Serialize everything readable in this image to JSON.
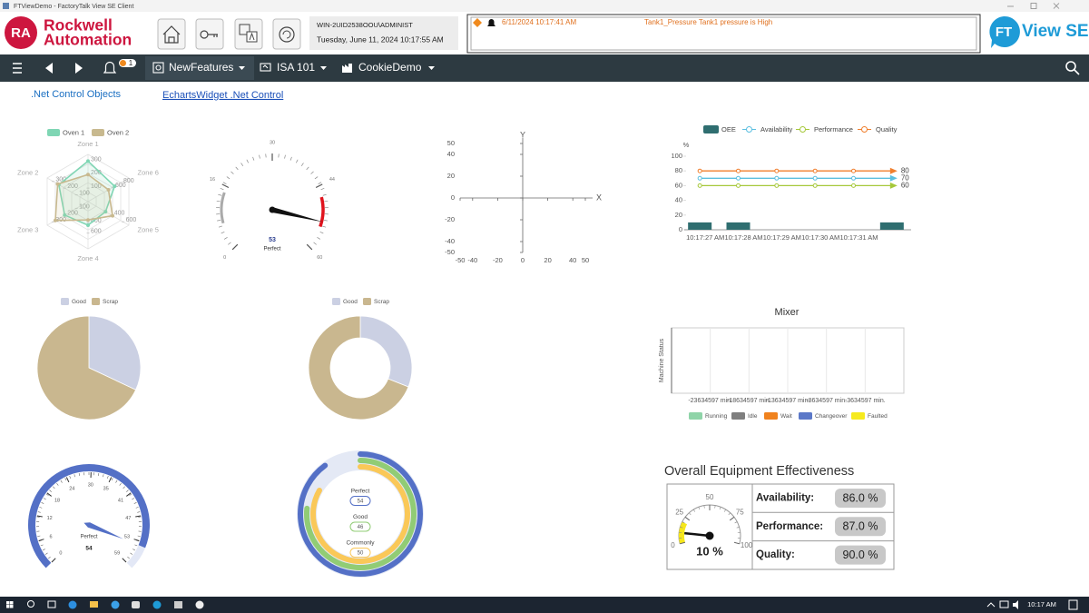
{
  "window": {
    "title": "FTViewDemo - FactoryTalk View SE Client"
  },
  "header": {
    "badge": "RA",
    "logo": [
      "Rockwell",
      "Automation"
    ],
    "computer": "WIN-2UID2538OOU\\ADMINIST",
    "datetime": "Tuesday, June 11, 2024 10:17:55 AM",
    "alarm": {
      "time": "6/11/2024 10:17:41 AM",
      "message": "Tank1_Pressure Tank1 pressure is High"
    },
    "product": {
      "mark": "FT",
      "name": "View SE"
    }
  },
  "nav": {
    "alarm_count": "1",
    "tabs": [
      "NewFeatures",
      "ISA 101",
      "CookieDemo"
    ]
  },
  "links": [
    ".Net Control Objects",
    "EchartsWidget .Net Control"
  ],
  "radar": {
    "type": "radar",
    "indicators": [
      {
        "name": "Zone 1",
        "max": 350,
        "ticks": [
          100,
          200,
          300
        ]
      },
      {
        "name": "Zone 2",
        "max": 350,
        "ticks": [
          100,
          200,
          300
        ]
      },
      {
        "name": "Zone 3",
        "max": 350,
        "ticks": [
          100,
          200,
          300
        ]
      },
      {
        "name": "Zone 4",
        "max": 900,
        "ticks": [
          400,
          600
        ]
      },
      {
        "name": "Zone 5",
        "max": 700,
        "ticks": [
          400,
          600
        ]
      },
      {
        "name": "Zone 6",
        "max": 1000,
        "ticks": [
          600,
          800
        ]
      }
    ],
    "series": [
      {
        "name": "Oven 1",
        "color": "#7fd6b4",
        "values": [
          300,
          250,
          200,
          450,
          300,
          650
        ]
      },
      {
        "name": "Oven 2",
        "color": "#c8b98f",
        "values": [
          200,
          260,
          280,
          350,
          420,
          500
        ]
      }
    ]
  },
  "gauge_top": {
    "type": "gauge",
    "min": 0,
    "max": 60,
    "ticks": [
      0,
      16,
      30,
      44,
      60
    ],
    "value": 53,
    "label": "Perfect"
  },
  "axes": {
    "type": "scatter",
    "x_name": "X",
    "y_name": "Y",
    "xlim": [
      -50,
      50
    ],
    "ylim": [
      -50,
      50
    ],
    "xticks": [
      -50,
      -40,
      -20,
      0,
      20,
      40,
      50
    ],
    "yticks": [
      50,
      40,
      20,
      0,
      -20,
      -40,
      -50
    ]
  },
  "oee_trend": {
    "type": "line",
    "y_label": "%",
    "categories": [
      "10:17:27 AM",
      "10:17:28 AM",
      "10:17:29 AM",
      "10:17:30 AM",
      "10:17:31 AM",
      null
    ],
    "ylim": [
      0,
      100
    ],
    "yticks": [
      0,
      20,
      40,
      60,
      80,
      100
    ],
    "series": [
      {
        "name": "OEE",
        "kind": "bar",
        "color": "#2f6e70",
        "values": [
          10,
          10,
          null,
          null,
          null,
          10
        ]
      },
      {
        "name": "Availability",
        "kind": "line",
        "color": "#5bbfe0",
        "values": [
          70,
          70,
          70,
          70,
          70,
          70
        ]
      },
      {
        "name": "Performance",
        "kind": "line",
        "color": "#a6c83a",
        "values": [
          60,
          60,
          60,
          60,
          60,
          60
        ]
      },
      {
        "name": "Quality",
        "kind": "line",
        "color": "#f07f2e",
        "values": [
          80,
          80,
          80,
          80,
          80,
          80
        ]
      }
    ]
  },
  "pies": [
    {
      "type": "pie",
      "categories": [
        "Good",
        "Scrap"
      ],
      "values": [
        32,
        68
      ],
      "colors": [
        "#cbd0e3",
        "#c9b78f"
      ]
    },
    {
      "type": "donut",
      "categories": [
        "Good",
        "Scrap"
      ],
      "values": [
        31,
        69
      ],
      "colors": [
        "#cbd0e3",
        "#c9b78f"
      ]
    }
  ],
  "mixer": {
    "title": "Mixer",
    "y_label": "Machine Status",
    "x_labels": [
      "-23634597 min.",
      "-18634597 min.",
      "-13634597 min.",
      "-8634597 min.",
      "-3634597 min."
    ],
    "legend": [
      {
        "name": "Running",
        "color": "#8fd4a8"
      },
      {
        "name": "Idle",
        "color": "#7f7f7f"
      },
      {
        "name": "Wait",
        "color": "#f0821e"
      },
      {
        "name": "Changeover",
        "color": "#5b78c8"
      },
      {
        "name": "Faulted",
        "color": "#f6ea1e"
      }
    ]
  },
  "gauge_bottom": {
    "type": "gauge",
    "min": 0,
    "max": 59,
    "ticks": [
      0,
      6,
      12,
      18,
      24,
      30,
      35,
      41,
      47,
      53,
      59
    ],
    "value": 54,
    "label": "Perfect"
  },
  "rings": {
    "type": "ring",
    "max": 60,
    "items": [
      {
        "name": "Perfect",
        "value": 54,
        "color": "#5470c6"
      },
      {
        "name": "Good",
        "value": 46,
        "color": "#91cc75"
      },
      {
        "name": "Commonly",
        "value": 50,
        "color": "#fac858"
      }
    ]
  },
  "oee": {
    "title": "Overall Equipment Effectiveness",
    "gauge": {
      "min": 0,
      "max": 100,
      "ticks": [
        0,
        25,
        50,
        75,
        100
      ],
      "value": 10,
      "value_label": "10 %"
    },
    "rows": [
      [
        "Availability:",
        "86.0 %"
      ],
      [
        "Performance:",
        "87.0 %"
      ],
      [
        "Quality:",
        "90.0 %"
      ]
    ]
  },
  "taskbar": {
    "time": "10:17 AM"
  }
}
